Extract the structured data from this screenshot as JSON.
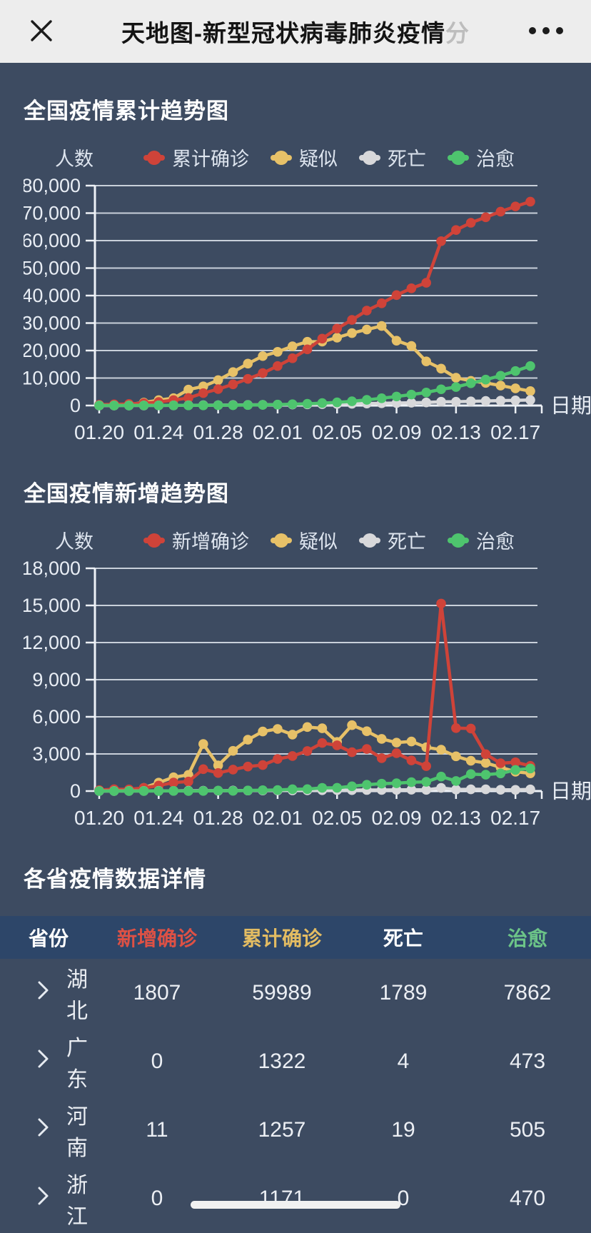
{
  "navbar": {
    "title": "天地图-新型冠状病毒肺炎疫情",
    "title_truncated_char": "分",
    "close_icon": "close-icon",
    "more_icon": "more-menu-icon"
  },
  "colors": {
    "background": "#3d4b61",
    "navbar_bg": "#ededed",
    "table_header_bg": "#2d4669",
    "grid_line": "#c9d0da",
    "axis_line": "#eef2f7",
    "confirmed_red": "#cf4339",
    "suspected_yellow": "#e7c168",
    "death_gray": "#d8d8da",
    "cured_green": "#4ec46e"
  },
  "chart_data": [
    {
      "type": "line",
      "title": "全国疫情累计趋势图",
      "y_axis_name": "人数",
      "x_axis_name": "日期",
      "ylim": [
        0,
        80000
      ],
      "y_tick_step": 10000,
      "grid": true,
      "legend_position": "top",
      "x_tick_every": 4,
      "x": [
        "01.20",
        "01.21",
        "01.22",
        "01.23",
        "01.24",
        "01.25",
        "01.26",
        "01.27",
        "01.28",
        "01.29",
        "01.30",
        "01.31",
        "02.01",
        "02.02",
        "02.03",
        "02.04",
        "02.05",
        "02.06",
        "02.07",
        "02.08",
        "02.09",
        "02.10",
        "02.11",
        "02.12",
        "02.13",
        "02.14",
        "02.15",
        "02.16",
        "02.17",
        "02.18"
      ],
      "series": [
        {
          "name": "累计确诊",
          "color": "#cf4339",
          "values": [
            291,
            440,
            571,
            830,
            1287,
            1975,
            2744,
            4515,
            5974,
            7711,
            9692,
            11791,
            14380,
            17205,
            20438,
            24324,
            28018,
            31161,
            34546,
            37198,
            40171,
            42638,
            44653,
            59804,
            63851,
            66492,
            68500,
            70548,
            72436,
            74185
          ]
        },
        {
          "name": "疑似",
          "color": "#e7c168",
          "values": [
            54,
            37,
            393,
            1072,
            1965,
            2684,
            5794,
            6973,
            9239,
            12167,
            15238,
            17988,
            19544,
            21558,
            23214,
            23260,
            24702,
            26359,
            27657,
            28942,
            23589,
            21675,
            16067,
            13435,
            10109,
            8969,
            8228,
            7264,
            6242,
            5248
          ]
        },
        {
          "name": "死亡",
          "color": "#d8d8da",
          "values": [
            6,
            9,
            17,
            25,
            41,
            56,
            80,
            106,
            132,
            170,
            213,
            259,
            304,
            361,
            425,
            490,
            563,
            636,
            722,
            811,
            908,
            1016,
            1113,
            1367,
            1380,
            1523,
            1665,
            1770,
            1868,
            2004
          ]
        },
        {
          "name": "治愈",
          "color": "#4ec46e",
          "values": [
            25,
            25,
            28,
            34,
            38,
            49,
            51,
            60,
            103,
            124,
            171,
            243,
            328,
            475,
            632,
            892,
            1153,
            1540,
            2050,
            2649,
            3281,
            3996,
            4740,
            5911,
            6723,
            8096,
            9419,
            10844,
            12552,
            14376
          ]
        }
      ]
    },
    {
      "type": "line",
      "title": "全国疫情新增趋势图",
      "y_axis_name": "人数",
      "x_axis_name": "日期",
      "ylim": [
        0,
        18000
      ],
      "y_tick_step": 3000,
      "grid": true,
      "legend_position": "top",
      "x_tick_every": 4,
      "x": [
        "01.20",
        "01.21",
        "01.22",
        "01.23",
        "01.24",
        "01.25",
        "01.26",
        "01.27",
        "01.28",
        "01.29",
        "01.30",
        "01.31",
        "02.01",
        "02.02",
        "02.03",
        "02.04",
        "02.05",
        "02.06",
        "02.07",
        "02.08",
        "02.09",
        "02.10",
        "02.11",
        "02.12",
        "02.13",
        "02.14",
        "02.15",
        "02.16",
        "02.17",
        "02.18"
      ],
      "series": [
        {
          "name": "新增确诊",
          "color": "#cf4339",
          "values": [
            77,
            149,
            131,
            259,
            444,
            688,
            769,
            1771,
            1459,
            1737,
            1982,
            2102,
            2590,
            2829,
            3235,
            3887,
            3694,
            3143,
            3399,
            2656,
            3062,
            2478,
            2015,
            15152,
            5090,
            5052,
            2980,
            2250,
            2330,
            2040
          ]
        },
        {
          "name": "疑似",
          "color": "#e7c168",
          "values": [
            27,
            54,
            37,
            257,
            680,
            1118,
            1309,
            3806,
            2077,
            3248,
            4148,
            4812,
            5019,
            4562,
            5173,
            5072,
            3971,
            5328,
            4833,
            4214,
            3916,
            4008,
            3536,
            3342,
            2807,
            2450,
            2277,
            1918,
            1563,
            1432
          ]
        },
        {
          "name": "死亡",
          "color": "#d8d8da",
          "values": [
            3,
            6,
            8,
            8,
            16,
            15,
            24,
            26,
            26,
            38,
            43,
            46,
            45,
            57,
            64,
            65,
            73,
            73,
            86,
            89,
            97,
            108,
            97,
            254,
            121,
            143,
            142,
            105,
            98,
            136
          ]
        },
        {
          "name": "治愈",
          "color": "#4ec46e",
          "values": [
            0,
            0,
            3,
            6,
            4,
            11,
            2,
            9,
            43,
            21,
            47,
            72,
            85,
            147,
            157,
            260,
            261,
            387,
            510,
            599,
            632,
            716,
            744,
            1171,
            812,
            1373,
            1323,
            1425,
            1708,
            1824
          ]
        }
      ]
    }
  ],
  "table_section": {
    "title": "各省疫情数据详情",
    "columns": [
      {
        "label": "省份",
        "color": "#ffffff"
      },
      {
        "label": "新增确诊",
        "color": "#dd5145"
      },
      {
        "label": "累计确诊",
        "color": "#e3bc62"
      },
      {
        "label": "死亡",
        "color": "#ffffff"
      },
      {
        "label": "治愈",
        "color": "#6cc488"
      }
    ],
    "rows": [
      {
        "province": "湖北",
        "new_confirmed": "1807",
        "total_confirmed": "59989",
        "deaths": "1789",
        "cured": "7862"
      },
      {
        "province": "广东",
        "new_confirmed": "0",
        "total_confirmed": "1322",
        "deaths": "4",
        "cured": "473"
      },
      {
        "province": "河南",
        "new_confirmed": "11",
        "total_confirmed": "1257",
        "deaths": "19",
        "cured": "505"
      },
      {
        "province": "浙江",
        "new_confirmed": "0",
        "total_confirmed": "1171",
        "deaths": "0",
        "cured": "470"
      }
    ]
  },
  "icons": {
    "close": "close-icon",
    "more_menu": "more-menu-icon",
    "row_expand": "chevron-right-icon",
    "scroll": "scroll-indicator"
  }
}
